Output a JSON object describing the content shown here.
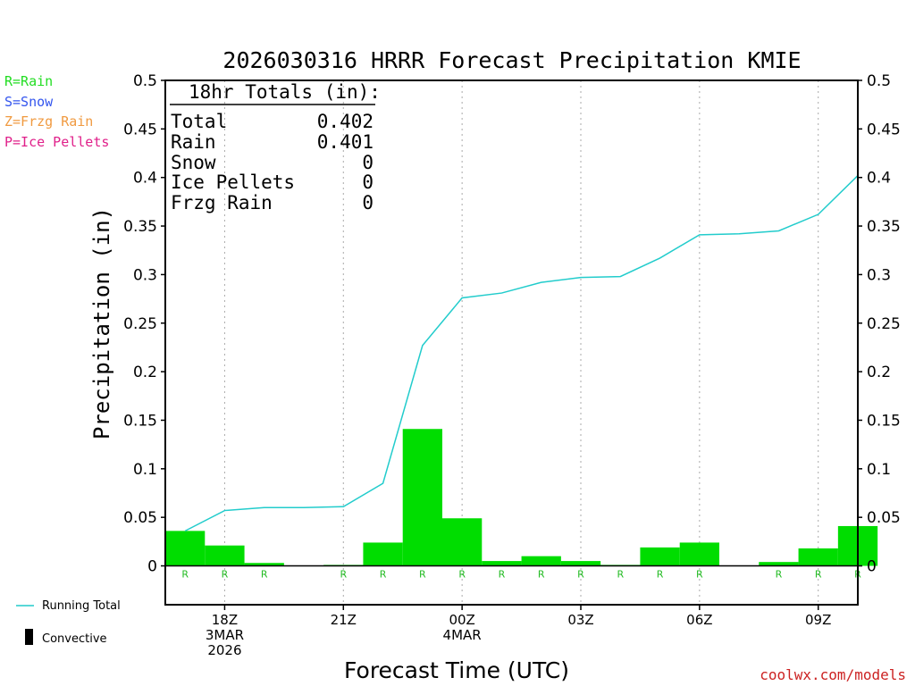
{
  "title": "2026030316 HRRR Forecast Precipitation KMIE",
  "legend_left": [
    {
      "text": "R=Rain",
      "color": "#22dd22"
    },
    {
      "text": "S=Snow",
      "color": "#3355ee"
    },
    {
      "text": "Z=Frzg Rain",
      "color": "#f09a40"
    },
    {
      "text": "P=Ice Pellets",
      "color": "#e0208a"
    }
  ],
  "totals_box": {
    "heading": "18hr Totals (in):",
    "rows": [
      {
        "label": "Total",
        "value": "0.402"
      },
      {
        "label": "Rain",
        "value": "0.401"
      },
      {
        "label": "Snow",
        "value": "0"
      },
      {
        "label": "Ice Pellets",
        "value": "0"
      },
      {
        "label": "Frzg Rain",
        "value": "0"
      }
    ]
  },
  "bottom_legend": {
    "running_total": "Running Total",
    "convective": "Convective"
  },
  "watermark": "coolwx.com/models",
  "colors": {
    "bar": "#00dd00",
    "running_total": "#22cccc",
    "rain_label": "#22bb22",
    "axis": "#000000",
    "grid": "#aaaaaa",
    "watermark": "#cc2222"
  },
  "chart_data": {
    "type": "bar",
    "title": "2026030316 HRRR Forecast Precipitation KMIE",
    "xlabel": "Forecast Time (UTC)",
    "ylabel": "Precipitation (in)",
    "ylim": [
      -0.04,
      0.5
    ],
    "yticks": [
      0,
      0.05,
      0.1,
      0.15,
      0.2,
      0.25,
      0.3,
      0.35,
      0.4,
      0.45,
      0.5
    ],
    "ytick_labels": [
      "0",
      "0.05",
      "0.1",
      "0.15",
      "0.2",
      "0.25",
      "0.3",
      "0.35",
      "0.4",
      "0.45",
      "0.5"
    ],
    "grid": "vertical dotted at labeled hours",
    "x_hours": [
      17,
      18,
      19,
      20,
      21,
      22,
      23,
      24,
      25,
      26,
      27,
      28,
      29,
      30,
      31,
      32,
      33,
      34
    ],
    "xlim": [
      16.5,
      34
    ],
    "xticks": [
      {
        "hour": 18,
        "lines": [
          "18Z",
          "3MAR",
          "2026"
        ]
      },
      {
        "hour": 21,
        "lines": [
          "21Z"
        ]
      },
      {
        "hour": 24,
        "lines": [
          "00Z",
          "4MAR"
        ]
      },
      {
        "hour": 27,
        "lines": [
          "03Z"
        ]
      },
      {
        "hour": 30,
        "lines": [
          "06Z"
        ]
      },
      {
        "hour": 33,
        "lines": [
          "09Z"
        ]
      }
    ],
    "series": [
      {
        "name": "Rain",
        "kind": "bar",
        "values": [
          0.036,
          0.021,
          0.003,
          0,
          0.001,
          0.024,
          0.141,
          0.049,
          0.005,
          0.01,
          0.005,
          0.001,
          0.019,
          0.024,
          0,
          0.004,
          0.018,
          0.041
        ]
      },
      {
        "name": "Running Total",
        "kind": "line",
        "values": [
          0.036,
          0.057,
          0.06,
          0.06,
          0.061,
          0.085,
          0.227,
          0.276,
          0.281,
          0.292,
          0.297,
          0.298,
          0.317,
          0.341,
          0.342,
          0.345,
          0.362,
          0.402
        ]
      }
    ],
    "ptype_labels": [
      "R",
      "R",
      "R",
      "",
      "R",
      "R",
      "R",
      "R",
      "R",
      "R",
      "R",
      "R",
      "R",
      "R",
      "",
      "R",
      "R",
      "R"
    ]
  }
}
